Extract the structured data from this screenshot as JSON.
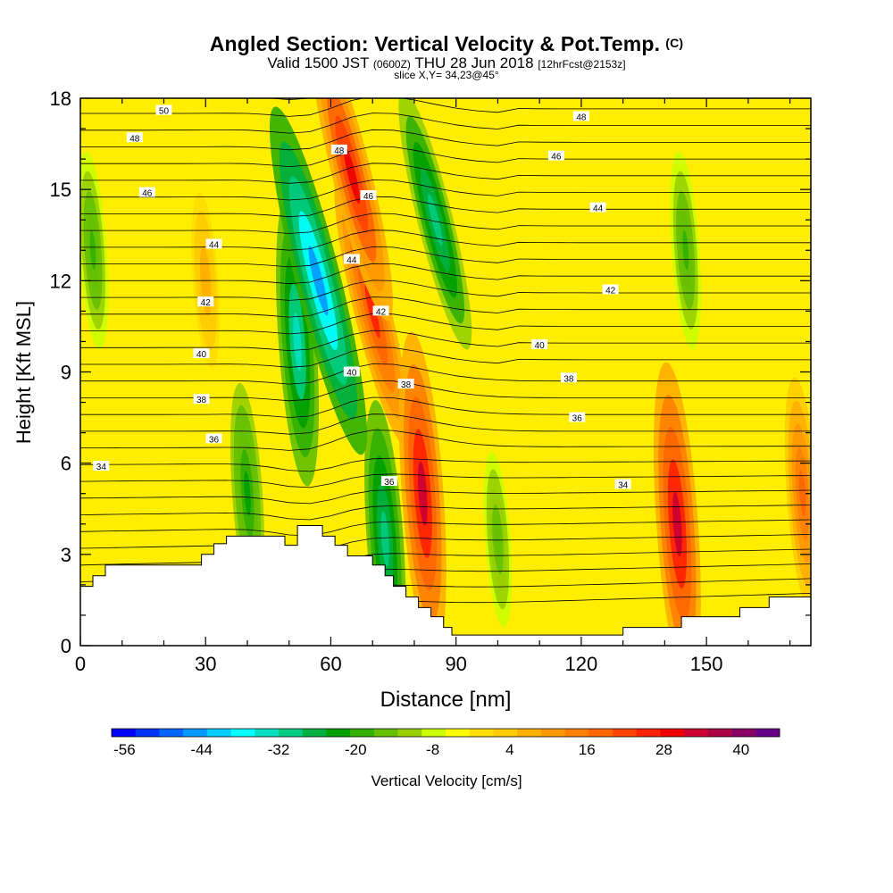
{
  "header": {
    "title": "Angled Section: Vertical Velocity & Pot.Temp.",
    "copyright": "(C)",
    "valid_prefix": "Valid 1500 JST",
    "valid_utc": "(0600Z)",
    "valid_date": "THU 28 Jun 2018",
    "forecast": "[12hrFcst@2153z]",
    "slice": "slice X,Y= 34,23@45°"
  },
  "chart_data": {
    "type": "heatmap",
    "xlabel": "Distance [nm]",
    "ylabel": "Height [Kft MSL]",
    "xlim": [
      0,
      175
    ],
    "ylim": [
      0,
      18
    ],
    "x_ticks": [
      0,
      30,
      60,
      90,
      120,
      150
    ],
    "y_ticks": [
      0,
      3,
      6,
      9,
      12,
      15,
      18
    ],
    "colorbar": {
      "label": "Vertical Velocity [cm/s]",
      "min": -58,
      "max": 46,
      "step": 4,
      "tick_values": [
        -56,
        -44,
        -32,
        -20,
        -8,
        4,
        16,
        28,
        40
      ],
      "colors": [
        "#0000ff",
        "#0033ff",
        "#0066ff",
        "#0099ff",
        "#00ccff",
        "#00ffff",
        "#00e0c0",
        "#00cc80",
        "#00b040",
        "#00a000",
        "#33b000",
        "#66c000",
        "#99d000",
        "#ccff00",
        "#ffff00",
        "#ffdd00",
        "#ffcc00",
        "#ffb000",
        "#ff9900",
        "#ff8000",
        "#ff6600",
        "#ff4400",
        "#ff2200",
        "#ee0000",
        "#cc0033",
        "#aa0044",
        "#880066",
        "#660088"
      ]
    },
    "vertical_velocity_features_cm_s": [
      {
        "x": 57,
        "y": 12,
        "value": -44
      },
      {
        "x": 52,
        "y": 10,
        "value": -32
      },
      {
        "x": 85,
        "y": 14,
        "value": -28
      },
      {
        "x": 73,
        "y": 3.5,
        "value": -30
      },
      {
        "x": 40,
        "y": 5,
        "value": -20
      },
      {
        "x": 3,
        "y": 13,
        "value": -16
      },
      {
        "x": 145,
        "y": 13,
        "value": -16
      },
      {
        "x": 100,
        "y": 3.5,
        "value": -12
      },
      {
        "x": 65,
        "y": 15.5,
        "value": 34
      },
      {
        "x": 70,
        "y": 11,
        "value": 30
      },
      {
        "x": 82,
        "y": 5,
        "value": 38
      },
      {
        "x": 143,
        "y": 4,
        "value": 38
      },
      {
        "x": 173,
        "y": 5,
        "value": 22
      },
      {
        "x": 30,
        "y": 12,
        "value": 12
      }
    ],
    "potential_temperature_labels_C": [
      {
        "x": 20,
        "y": 17.6,
        "label": "50"
      },
      {
        "x": 13,
        "y": 16.7,
        "label": "48"
      },
      {
        "x": 16,
        "y": 14.9,
        "label": "46"
      },
      {
        "x": 32,
        "y": 13.2,
        "label": "44"
      },
      {
        "x": 30,
        "y": 11.3,
        "label": "42"
      },
      {
        "x": 29,
        "y": 9.6,
        "label": "40"
      },
      {
        "x": 29,
        "y": 8.1,
        "label": "38"
      },
      {
        "x": 32,
        "y": 6.8,
        "label": "36"
      },
      {
        "x": 5,
        "y": 5.9,
        "label": "34"
      },
      {
        "x": 62,
        "y": 16.3,
        "label": "48"
      },
      {
        "x": 69,
        "y": 14.8,
        "label": "46"
      },
      {
        "x": 65,
        "y": 12.7,
        "label": "44"
      },
      {
        "x": 72,
        "y": 11,
        "label": "42"
      },
      {
        "x": 65,
        "y": 9,
        "label": "40"
      },
      {
        "x": 78,
        "y": 8.6,
        "label": "38"
      },
      {
        "x": 74,
        "y": 5.4,
        "label": "36"
      },
      {
        "x": 120,
        "y": 17.4,
        "label": "48"
      },
      {
        "x": 114,
        "y": 16.1,
        "label": "46"
      },
      {
        "x": 124,
        "y": 14.4,
        "label": "44"
      },
      {
        "x": 127,
        "y": 11.7,
        "label": "42"
      },
      {
        "x": 110,
        "y": 9.9,
        "label": "40"
      },
      {
        "x": 117,
        "y": 8.8,
        "label": "38"
      },
      {
        "x": 119,
        "y": 7.5,
        "label": "36"
      },
      {
        "x": 130,
        "y": 5.3,
        "label": "34"
      }
    ],
    "terrain_kft": [
      [
        0,
        1.95
      ],
      [
        3,
        1.95
      ],
      [
        3,
        2.3
      ],
      [
        6,
        2.3
      ],
      [
        6,
        2.65
      ],
      [
        29,
        2.65
      ],
      [
        29,
        3
      ],
      [
        32,
        3
      ],
      [
        32,
        3.35
      ],
      [
        35,
        3.35
      ],
      [
        35,
        3.6
      ],
      [
        49,
        3.6
      ],
      [
        49,
        3.3
      ],
      [
        52,
        3.3
      ],
      [
        52,
        3.95
      ],
      [
        58,
        3.95
      ],
      [
        58,
        3.6
      ],
      [
        61,
        3.6
      ],
      [
        61,
        3.3
      ],
      [
        64,
        3.3
      ],
      [
        64,
        2.95
      ],
      [
        70,
        2.95
      ],
      [
        70,
        2.65
      ],
      [
        73,
        2.65
      ],
      [
        73,
        2.3
      ],
      [
        75,
        2.3
      ],
      [
        75,
        1.95
      ],
      [
        78,
        1.95
      ],
      [
        78,
        1.6
      ],
      [
        81,
        1.6
      ],
      [
        81,
        1.25
      ],
      [
        84,
        1.25
      ],
      [
        84,
        0.95
      ],
      [
        87,
        0.95
      ],
      [
        87,
        0.6
      ],
      [
        89,
        0.6
      ],
      [
        89,
        0.35
      ],
      [
        130,
        0.35
      ],
      [
        130,
        0.6
      ],
      [
        144,
        0.6
      ],
      [
        144,
        0.95
      ],
      [
        158,
        0.95
      ],
      [
        158,
        1.25
      ],
      [
        165,
        1.25
      ],
      [
        165,
        1.6
      ],
      [
        175,
        1.6
      ]
    ]
  }
}
